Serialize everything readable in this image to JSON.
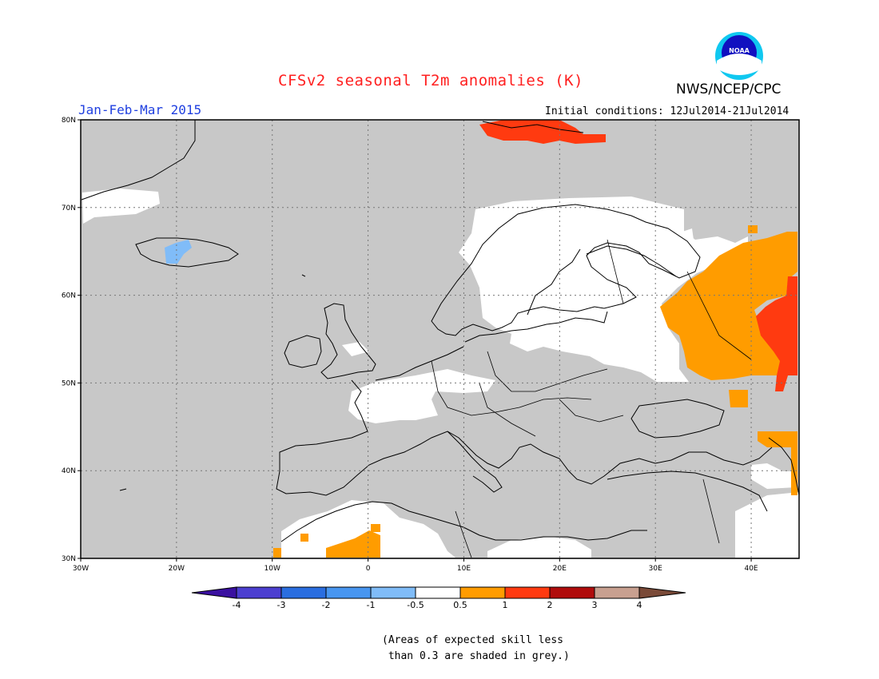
{
  "title": "CFSv2 seasonal T2m anomalies (K)",
  "agency": "NWS/NCEP/CPC",
  "logo_text": "NOAA",
  "season": "Jan-Feb-Mar 2015",
  "initial_conditions": "Initial conditions: 12Jul2014-21Jul2014",
  "map": {
    "lon_range": [
      -30,
      45
    ],
    "lat_range": [
      30,
      80
    ],
    "lon_ticks": [
      "30W",
      "20W",
      "10W",
      "0",
      "10E",
      "20E",
      "30E",
      "40E"
    ],
    "lat_ticks": [
      "30N",
      "40N",
      "50N",
      "60N",
      "70N",
      "80N"
    ],
    "gridlines": true,
    "background_meaning": "grey = skill < 0.3"
  },
  "colorbar": {
    "labels": [
      "-4",
      "-3",
      "-2",
      "-1",
      "-0.5",
      "0.5",
      "1",
      "2",
      "3",
      "4"
    ],
    "colors": [
      "#3a10a0",
      "#4c3fd0",
      "#2a6ee0",
      "#4896f0",
      "#80bcf8",
      "#ffffff",
      "#ff9c00",
      "#ff3a10",
      "#b00c0c",
      "#c8a090",
      "#7a4a38"
    ]
  },
  "note_line1": "(Areas of expected skill less",
  "note_line2": " than 0.3 are shaded in grey.)",
  "colors": {
    "skill_grey": "#c8c8c8",
    "neutral": "#ffffff",
    "warm1": "#ff9c00",
    "warm2": "#ff3a10",
    "cool1": "#80bcf8"
  }
}
